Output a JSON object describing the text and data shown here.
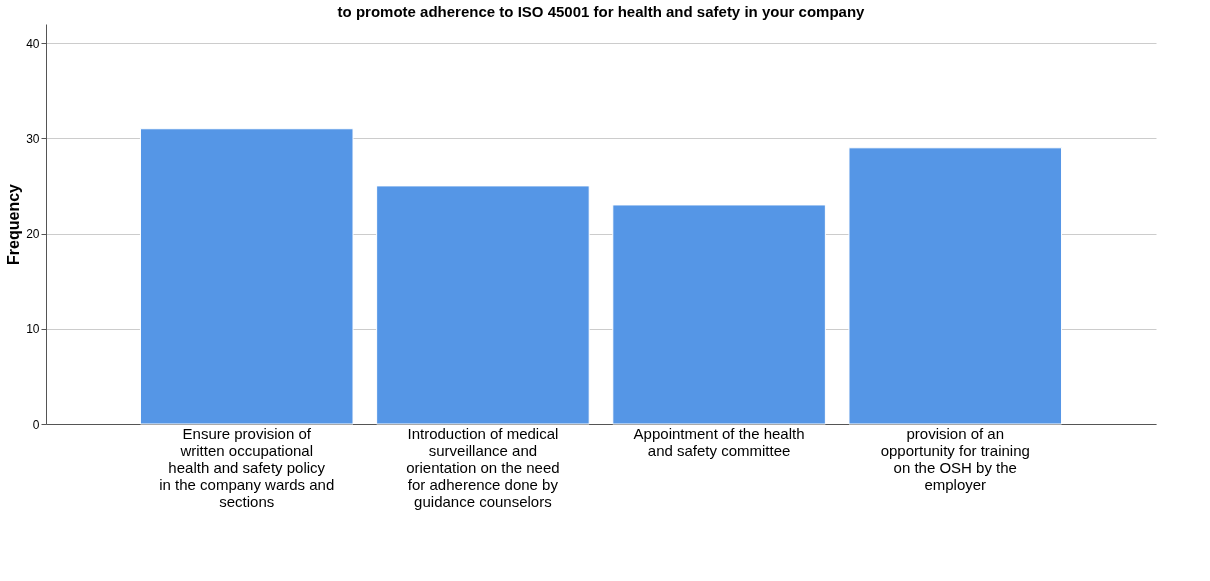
{
  "chart_data": {
    "type": "bar",
    "title": "to promote adherence to ISO 45001 for health and safety in your company",
    "ylabel": "Frequency",
    "categories": [
      "Ensure provision of written occupational health and safety policy in the company wards and sections",
      "Introduction of medical surveillance and orientation on the need for adherence done by guidance counselors",
      "Appointment of the health and safety committee",
      "provision of an opportunity for training on the OSH by the employer"
    ],
    "values": [
      31,
      25,
      23,
      29
    ],
    "color": "#5596e6",
    "ylim": [
      0,
      42
    ],
    "yticks": [
      0,
      10,
      20,
      30,
      40
    ],
    "grid": "y"
  }
}
